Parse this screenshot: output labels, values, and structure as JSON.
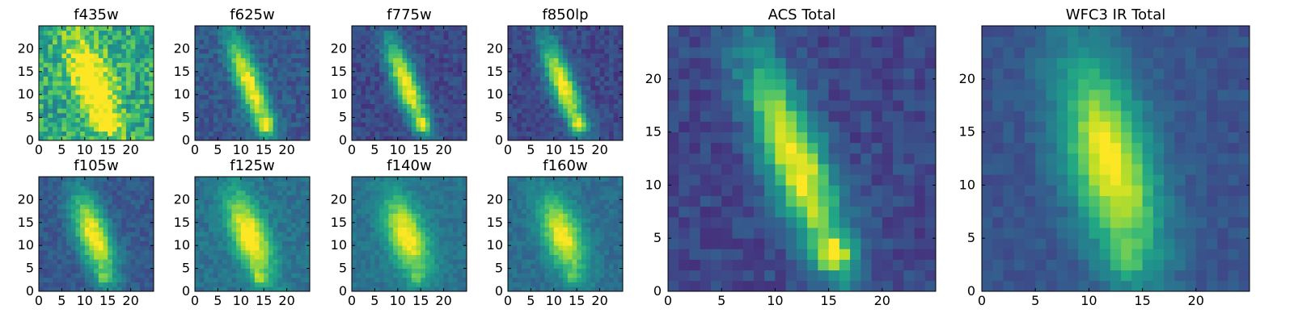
{
  "figure": {
    "background": "#ffffff"
  },
  "chart_data": [
    {
      "type": "heatmap",
      "title": "f435w",
      "xticks": [
        0,
        5,
        10,
        15,
        20
      ],
      "yticks": [
        0,
        5,
        10,
        15,
        20
      ],
      "xlim": [
        0,
        24
      ],
      "ylim": [
        0,
        24
      ],
      "colormap": "viridis",
      "sigma_x": 3.0,
      "sigma_y": 7.5,
      "tilt": -0.32,
      "peak": 0.6,
      "background": 0.6,
      "noise": 0.4,
      "blob": [
        15,
        4,
        0.3
      ]
    },
    {
      "type": "heatmap",
      "title": "f625w",
      "xticks": [
        0,
        5,
        10,
        15,
        20
      ],
      "yticks": [
        0,
        5,
        10,
        15,
        20
      ],
      "xlim": [
        0,
        24
      ],
      "ylim": [
        0,
        24
      ],
      "colormap": "viridis",
      "sigma_x": 2.0,
      "sigma_y": 7.5,
      "tilt": -0.36,
      "peak": 0.75,
      "background": 0.28,
      "noise": 0.18,
      "blob": [
        15.5,
        3.5,
        0.5
      ]
    },
    {
      "type": "heatmap",
      "title": "f775w",
      "xticks": [
        0,
        5,
        10,
        15,
        20
      ],
      "yticks": [
        0,
        5,
        10,
        15,
        20
      ],
      "xlim": [
        0,
        24
      ],
      "ylim": [
        0,
        24
      ],
      "colormap": "viridis",
      "sigma_x": 2.0,
      "sigma_y": 7.0,
      "tilt": -0.36,
      "peak": 0.8,
      "background": 0.22,
      "noise": 0.16,
      "blob": [
        15.5,
        3.5,
        0.5
      ]
    },
    {
      "type": "heatmap",
      "title": "f850lp",
      "xticks": [
        0,
        5,
        10,
        15,
        20
      ],
      "yticks": [
        0,
        5,
        10,
        15,
        20
      ],
      "xlim": [
        0,
        24
      ],
      "ylim": [
        0,
        24
      ],
      "colormap": "viridis",
      "sigma_x": 2.0,
      "sigma_y": 7.0,
      "tilt": -0.36,
      "peak": 0.8,
      "background": 0.22,
      "noise": 0.16,
      "blob": [
        15.5,
        3.5,
        0.5
      ]
    },
    {
      "type": "heatmap",
      "title": "ACS Total",
      "xticks": [
        0,
        5,
        10,
        15,
        20
      ],
      "yticks": [
        0,
        5,
        10,
        15,
        20
      ],
      "xlim": [
        0,
        24
      ],
      "ylim": [
        0,
        24
      ],
      "colormap": "viridis",
      "sigma_x": 2.0,
      "sigma_y": 7.0,
      "tilt": -0.36,
      "peak": 0.8,
      "background": 0.22,
      "noise": 0.16,
      "blob": [
        15.5,
        3.5,
        0.5
      ]
    },
    {
      "type": "heatmap",
      "title": "f105w",
      "xticks": [
        0,
        5,
        10,
        15,
        20
      ],
      "yticks": [
        0,
        5,
        10,
        15,
        20
      ],
      "xlim": [
        0,
        24
      ],
      "ylim": [
        0,
        24
      ],
      "colormap": "viridis",
      "sigma_x": 2.6,
      "sigma_y": 6.5,
      "tilt": -0.3,
      "peak": 0.75,
      "background": 0.28,
      "noise": 0.14,
      "blob": [
        14,
        3,
        0.25
      ]
    },
    {
      "type": "heatmap",
      "title": "f125w",
      "xticks": [
        0,
        5,
        10,
        15,
        20
      ],
      "yticks": [
        0,
        5,
        10,
        15,
        20
      ],
      "xlim": [
        0,
        24
      ],
      "ylim": [
        0,
        24
      ],
      "colormap": "viridis",
      "sigma_x": 2.8,
      "sigma_y": 6.5,
      "tilt": -0.3,
      "peak": 0.7,
      "background": 0.38,
      "noise": 0.14,
      "blob": [
        14,
        3,
        0.25
      ]
    },
    {
      "type": "heatmap",
      "title": "f140w",
      "xticks": [
        0,
        5,
        10,
        15,
        20
      ],
      "yticks": [
        0,
        5,
        10,
        15,
        20
      ],
      "xlim": [
        0,
        24
      ],
      "ylim": [
        0,
        24
      ],
      "colormap": "viridis",
      "sigma_x": 3.0,
      "sigma_y": 6.0,
      "tilt": -0.28,
      "peak": 0.65,
      "background": 0.38,
      "noise": 0.12,
      "blob": [
        14,
        3,
        0.2
      ]
    },
    {
      "type": "heatmap",
      "title": "f160w",
      "xticks": [
        0,
        5,
        10,
        15,
        20
      ],
      "yticks": [
        0,
        5,
        10,
        15,
        20
      ],
      "xlim": [
        0,
        24
      ],
      "ylim": [
        0,
        24
      ],
      "colormap": "viridis",
      "sigma_x": 3.0,
      "sigma_y": 6.0,
      "tilt": -0.28,
      "peak": 0.65,
      "background": 0.36,
      "noise": 0.12,
      "blob": [
        14,
        3,
        0.2
      ]
    },
    {
      "type": "heatmap",
      "title": "WFC3 IR Total",
      "xticks": [
        0,
        5,
        10,
        15,
        20
      ],
      "yticks": [
        0,
        5,
        10,
        15,
        20
      ],
      "xlim": [
        0,
        24
      ],
      "ylim": [
        0,
        24
      ],
      "colormap": "viridis",
      "sigma_x": 2.8,
      "sigma_y": 7.0,
      "tilt": -0.22,
      "peak": 0.75,
      "background": 0.26,
      "noise": 0.1,
      "blob": [
        13.5,
        3,
        0.2
      ]
    }
  ]
}
